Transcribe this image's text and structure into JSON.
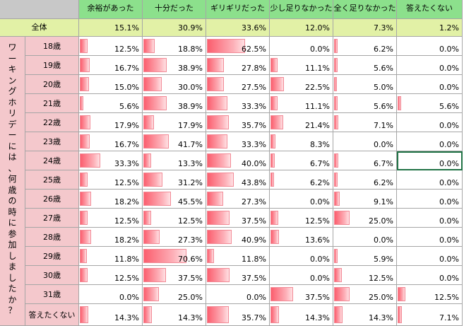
{
  "corner": "",
  "columns": [
    "余裕があった",
    "十分だった",
    "ギリギリだった",
    "少し足りなかった",
    "全く足りなかった",
    "答えたくない"
  ],
  "total": {
    "label": "全体",
    "values": [
      "15.1%",
      "30.9%",
      "33.6%",
      "12.0%",
      "7.3%",
      "1.2%"
    ]
  },
  "question_chars": [
    "ワ",
    "ー",
    "キ",
    "ン",
    "グ",
    "ホ",
    "リ",
    "デ",
    "ー",
    "に",
    "は",
    "、",
    "何",
    "歳",
    "の",
    "時",
    "に",
    "参",
    "加",
    "し",
    "ま",
    "し",
    "た",
    "か",
    "？"
  ],
  "rows": [
    {
      "label": "18歳",
      "values": [
        "12.5%",
        "18.8%",
        "62.5%",
        "0.0%",
        "6.2%",
        "0.0%"
      ],
      "pct": [
        12.5,
        18.8,
        62.5,
        0.0,
        6.2,
        0.0
      ]
    },
    {
      "label": "19歳",
      "values": [
        "16.7%",
        "38.9%",
        "27.8%",
        "11.1%",
        "5.6%",
        "0.0%"
      ],
      "pct": [
        16.7,
        38.9,
        27.8,
        11.1,
        5.6,
        0.0
      ]
    },
    {
      "label": "20歳",
      "values": [
        "15.0%",
        "30.0%",
        "27.5%",
        "22.5%",
        "5.0%",
        "0.0%"
      ],
      "pct": [
        15.0,
        30.0,
        27.5,
        22.5,
        5.0,
        0.0
      ]
    },
    {
      "label": "21歳",
      "values": [
        "5.6%",
        "38.9%",
        "33.3%",
        "11.1%",
        "5.6%",
        "5.6%"
      ],
      "pct": [
        5.6,
        38.9,
        33.3,
        11.1,
        5.6,
        5.6
      ]
    },
    {
      "label": "22歳",
      "values": [
        "17.9%",
        "17.9%",
        "35.7%",
        "21.4%",
        "7.1%",
        "0.0%"
      ],
      "pct": [
        17.9,
        17.9,
        35.7,
        21.4,
        7.1,
        0.0
      ]
    },
    {
      "label": "23歳",
      "values": [
        "16.7%",
        "41.7%",
        "33.3%",
        "8.3%",
        "0.0%",
        "0.0%"
      ],
      "pct": [
        16.7,
        41.7,
        33.3,
        8.3,
        0.0,
        0.0
      ]
    },
    {
      "label": "24歳",
      "values": [
        "33.3%",
        "13.3%",
        "40.0%",
        "6.7%",
        "6.7%",
        "0.0%"
      ],
      "pct": [
        33.3,
        13.3,
        40.0,
        6.7,
        6.7,
        0.0
      ]
    },
    {
      "label": "25歳",
      "values": [
        "12.5%",
        "31.2%",
        "43.8%",
        "6.2%",
        "6.2%",
        "0.0%"
      ],
      "pct": [
        12.5,
        31.2,
        43.8,
        6.2,
        6.2,
        0.0
      ]
    },
    {
      "label": "26歳",
      "values": [
        "18.2%",
        "45.5%",
        "27.3%",
        "0.0%",
        "9.1%",
        "0.0%"
      ],
      "pct": [
        18.2,
        45.5,
        27.3,
        0.0,
        9.1,
        0.0
      ]
    },
    {
      "label": "27歳",
      "values": [
        "12.5%",
        "12.5%",
        "37.5%",
        "12.5%",
        "25.0%",
        "0.0%"
      ],
      "pct": [
        12.5,
        12.5,
        37.5,
        12.5,
        25.0,
        0.0
      ]
    },
    {
      "label": "28歳",
      "values": [
        "18.2%",
        "27.3%",
        "40.9%",
        "13.6%",
        "0.0%",
        "0.0%"
      ],
      "pct": [
        18.2,
        27.3,
        40.9,
        13.6,
        0.0,
        0.0
      ]
    },
    {
      "label": "29歳",
      "values": [
        "11.8%",
        "70.6%",
        "11.8%",
        "0.0%",
        "5.9%",
        "0.0%"
      ],
      "pct": [
        11.8,
        70.6,
        11.8,
        0.0,
        5.9,
        0.0
      ]
    },
    {
      "label": "30歳",
      "values": [
        "12.5%",
        "37.5%",
        "37.5%",
        "0.0%",
        "12.5%",
        "0.0%"
      ],
      "pct": [
        12.5,
        37.5,
        37.5,
        0.0,
        12.5,
        0.0
      ]
    },
    {
      "label": "31歳",
      "values": [
        "0.0%",
        "25.0%",
        "0.0%",
        "37.5%",
        "25.0%",
        "12.5%"
      ],
      "pct": [
        0.0,
        25.0,
        0.0,
        37.5,
        25.0,
        12.5
      ]
    },
    {
      "label": "答えたくない",
      "values": [
        "14.3%",
        "14.3%",
        "35.7%",
        "14.3%",
        "14.3%",
        "7.1%"
      ],
      "pct": [
        14.3,
        14.3,
        35.7,
        14.3,
        14.3,
        7.1
      ]
    }
  ],
  "selected_cell": {
    "row": 6,
    "col": 5
  },
  "colors": {
    "header": "#8ce08c",
    "total_row": "#e2f1a6",
    "row_label": "#f4c8cc",
    "bar": "#fb5e6e",
    "blank": "#c8c8c8"
  }
}
